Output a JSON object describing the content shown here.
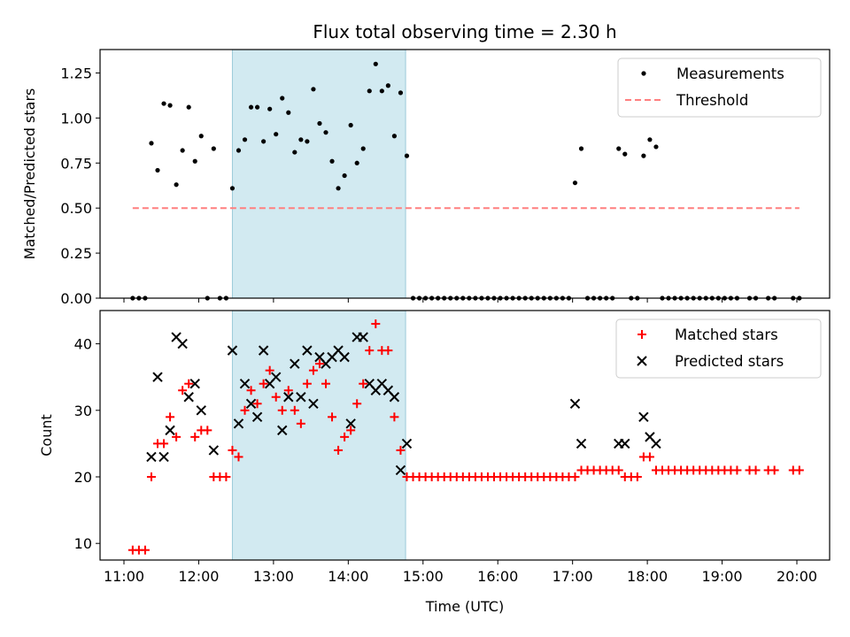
{
  "chart_data": [
    {
      "type": "scatter",
      "title": "Flux total observing time = 2.30 h",
      "xlabel": "",
      "ylabel": "Matched/Predicted stars",
      "ylim": [
        0,
        1.38
      ],
      "yticks": [
        "0.00",
        "0.25",
        "0.50",
        "0.75",
        "1.00",
        "1.25"
      ],
      "ytick_values": [
        0,
        0.25,
        0.5,
        0.75,
        1.0,
        1.25
      ],
      "highlight_span": [
        "12:27",
        "14:46"
      ],
      "highlight_color": "#add8e6",
      "legend_position": "upper right",
      "series": [
        {
          "name": "Measurements",
          "marker": "dot",
          "color": "#000000",
          "points": [
            [
              "11:07",
              0
            ],
            [
              "11:12",
              0
            ],
            [
              "11:17",
              0
            ],
            [
              "11:22",
              0.86
            ],
            [
              "11:27",
              0.71
            ],
            [
              "11:32",
              1.08
            ],
            [
              "11:37",
              1.07
            ],
            [
              "11:42",
              0.63
            ],
            [
              "11:47",
              0.82
            ],
            [
              "11:52",
              1.06
            ],
            [
              "11:57",
              0.76
            ],
            [
              "12:02",
              0.9
            ],
            [
              "12:07",
              0
            ],
            [
              "12:12",
              0.83
            ],
            [
              "12:17",
              0
            ],
            [
              "12:22",
              0
            ],
            [
              "12:27",
              0.61
            ],
            [
              "12:32",
              0.82
            ],
            [
              "12:37",
              0.88
            ],
            [
              "12:42",
              1.06
            ],
            [
              "12:47",
              1.06
            ],
            [
              "12:52",
              0.87
            ],
            [
              "12:57",
              1.05
            ],
            [
              "13:02",
              0.91
            ],
            [
              "13:07",
              1.11
            ],
            [
              "13:12",
              1.03
            ],
            [
              "13:17",
              0.81
            ],
            [
              "13:22",
              0.88
            ],
            [
              "13:27",
              0.87
            ],
            [
              "13:32",
              1.16
            ],
            [
              "13:37",
              0.97
            ],
            [
              "13:42",
              0.92
            ],
            [
              "13:47",
              0.76
            ],
            [
              "13:52",
              0.61
            ],
            [
              "13:57",
              0.68
            ],
            [
              "14:02",
              0.96
            ],
            [
              "14:07",
              0.75
            ],
            [
              "14:12",
              0.83
            ],
            [
              "14:17",
              1.15
            ],
            [
              "14:22",
              1.3
            ],
            [
              "14:27",
              1.15
            ],
            [
              "14:32",
              1.18
            ],
            [
              "14:37",
              0.9
            ],
            [
              "14:42",
              1.14
            ],
            [
              "14:47",
              0.79
            ],
            [
              "14:52",
              0
            ],
            [
              "14:57",
              0
            ],
            [
              "15:02",
              0
            ],
            [
              "15:07",
              0
            ],
            [
              "15:12",
              0
            ],
            [
              "15:17",
              0
            ],
            [
              "15:22",
              0
            ],
            [
              "15:27",
              0
            ],
            [
              "15:32",
              0
            ],
            [
              "15:37",
              0
            ],
            [
              "15:42",
              0
            ],
            [
              "15:47",
              0
            ],
            [
              "15:52",
              0
            ],
            [
              "15:57",
              0
            ],
            [
              "16:02",
              0
            ],
            [
              "16:07",
              0
            ],
            [
              "16:12",
              0
            ],
            [
              "16:17",
              0
            ],
            [
              "16:22",
              0
            ],
            [
              "16:27",
              0
            ],
            [
              "16:32",
              0
            ],
            [
              "16:37",
              0
            ],
            [
              "16:42",
              0
            ],
            [
              "16:47",
              0
            ],
            [
              "16:52",
              0
            ],
            [
              "16:57",
              0
            ],
            [
              "17:02",
              0.64
            ],
            [
              "17:07",
              0.83
            ],
            [
              "17:12",
              0
            ],
            [
              "17:17",
              0
            ],
            [
              "17:22",
              0
            ],
            [
              "17:27",
              0
            ],
            [
              "17:32",
              0
            ],
            [
              "17:37",
              0.83
            ],
            [
              "17:42",
              0.8
            ],
            [
              "17:47",
              0
            ],
            [
              "17:52",
              0
            ],
            [
              "17:57",
              0.79
            ],
            [
              "18:02",
              0.88
            ],
            [
              "18:07",
              0.84
            ],
            [
              "18:12",
              0
            ],
            [
              "18:17",
              0
            ],
            [
              "18:22",
              0
            ],
            [
              "18:27",
              0
            ],
            [
              "18:32",
              0
            ],
            [
              "18:37",
              0
            ],
            [
              "18:42",
              0
            ],
            [
              "18:47",
              0
            ],
            [
              "18:52",
              0
            ],
            [
              "18:57",
              0
            ],
            [
              "19:02",
              0
            ],
            [
              "19:07",
              0
            ],
            [
              "19:12",
              0
            ],
            [
              "19:22",
              0
            ],
            [
              "19:27",
              0
            ],
            [
              "19:37",
              0
            ],
            [
              "19:42",
              0
            ],
            [
              "19:57",
              0
            ],
            [
              "20:02",
              0
            ]
          ]
        },
        {
          "name": "Threshold",
          "marker": "dashed-line",
          "color": "#ff7f7f",
          "points": [
            [
              "11:07",
              0.5
            ],
            [
              "20:02",
              0.5
            ]
          ]
        }
      ]
    },
    {
      "type": "scatter",
      "title": "",
      "xlabel": "Time (UTC)",
      "ylabel": "Count",
      "ylim": [
        7.5,
        45
      ],
      "yticks": [
        "10",
        "20",
        "30",
        "40"
      ],
      "ytick_values": [
        10,
        20,
        30,
        40
      ],
      "xticks": [
        "11:00",
        "12:00",
        "13:00",
        "14:00",
        "15:00",
        "16:00",
        "17:00",
        "18:00",
        "19:00",
        "20:00"
      ],
      "highlight_span": [
        "12:27",
        "14:46"
      ],
      "highlight_color": "#add8e6",
      "legend_position": "upper right",
      "series": [
        {
          "name": "Matched stars",
          "marker": "plus",
          "color": "#ff0000",
          "points": [
            [
              "11:07",
              9
            ],
            [
              "11:12",
              9
            ],
            [
              "11:17",
              9
            ],
            [
              "11:22",
              20
            ],
            [
              "11:27",
              25
            ],
            [
              "11:32",
              25
            ],
            [
              "11:37",
              29
            ],
            [
              "11:42",
              26
            ],
            [
              "11:47",
              33
            ],
            [
              "11:52",
              34
            ],
            [
              "11:57",
              26
            ],
            [
              "12:02",
              27
            ],
            [
              "12:07",
              27
            ],
            [
              "12:12",
              20
            ],
            [
              "12:17",
              20
            ],
            [
              "12:22",
              20
            ],
            [
              "12:27",
              24
            ],
            [
              "12:32",
              23
            ],
            [
              "12:37",
              30
            ],
            [
              "12:42",
              33
            ],
            [
              "12:47",
              31
            ],
            [
              "12:52",
              34
            ],
            [
              "12:57",
              36
            ],
            [
              "13:02",
              32
            ],
            [
              "13:07",
              30
            ],
            [
              "13:12",
              33
            ],
            [
              "13:17",
              30
            ],
            [
              "13:22",
              28
            ],
            [
              "13:27",
              34
            ],
            [
              "13:32",
              36
            ],
            [
              "13:37",
              37
            ],
            [
              "13:42",
              34
            ],
            [
              "13:47",
              29
            ],
            [
              "13:52",
              24
            ],
            [
              "13:57",
              26
            ],
            [
              "14:02",
              27
            ],
            [
              "14:07",
              31
            ],
            [
              "14:12",
              34
            ],
            [
              "14:17",
              39
            ],
            [
              "14:22",
              43
            ],
            [
              "14:27",
              39
            ],
            [
              "14:32",
              39
            ],
            [
              "14:37",
              29
            ],
            [
              "14:42",
              24
            ],
            [
              "14:47",
              20
            ],
            [
              "14:52",
              20
            ],
            [
              "14:57",
              20
            ],
            [
              "15:02",
              20
            ],
            [
              "15:07",
              20
            ],
            [
              "15:12",
              20
            ],
            [
              "15:17",
              20
            ],
            [
              "15:22",
              20
            ],
            [
              "15:27",
              20
            ],
            [
              "15:32",
              20
            ],
            [
              "15:37",
              20
            ],
            [
              "15:42",
              20
            ],
            [
              "15:47",
              20
            ],
            [
              "15:52",
              20
            ],
            [
              "15:57",
              20
            ],
            [
              "16:02",
              20
            ],
            [
              "16:07",
              20
            ],
            [
              "16:12",
              20
            ],
            [
              "16:17",
              20
            ],
            [
              "16:22",
              20
            ],
            [
              "16:27",
              20
            ],
            [
              "16:32",
              20
            ],
            [
              "16:37",
              20
            ],
            [
              "16:42",
              20
            ],
            [
              "16:47",
              20
            ],
            [
              "16:52",
              20
            ],
            [
              "16:57",
              20
            ],
            [
              "17:02",
              20
            ],
            [
              "17:07",
              21
            ],
            [
              "17:12",
              21
            ],
            [
              "17:17",
              21
            ],
            [
              "17:22",
              21
            ],
            [
              "17:27",
              21
            ],
            [
              "17:32",
              21
            ],
            [
              "17:37",
              21
            ],
            [
              "17:42",
              20
            ],
            [
              "17:47",
              20
            ],
            [
              "17:52",
              20
            ],
            [
              "17:57",
              23
            ],
            [
              "18:02",
              23
            ],
            [
              "18:07",
              21
            ],
            [
              "18:12",
              21
            ],
            [
              "18:17",
              21
            ],
            [
              "18:22",
              21
            ],
            [
              "18:27",
              21
            ],
            [
              "18:32",
              21
            ],
            [
              "18:37",
              21
            ],
            [
              "18:42",
              21
            ],
            [
              "18:47",
              21
            ],
            [
              "18:52",
              21
            ],
            [
              "18:57",
              21
            ],
            [
              "19:02",
              21
            ],
            [
              "19:07",
              21
            ],
            [
              "19:12",
              21
            ],
            [
              "19:22",
              21
            ],
            [
              "19:27",
              21
            ],
            [
              "19:37",
              21
            ],
            [
              "19:42",
              21
            ],
            [
              "19:57",
              21
            ],
            [
              "20:02",
              21
            ]
          ]
        },
        {
          "name": "Predicted stars",
          "marker": "x",
          "color": "#000000",
          "points": [
            [
              "11:22",
              23
            ],
            [
              "11:27",
              35
            ],
            [
              "11:32",
              23
            ],
            [
              "11:37",
              27
            ],
            [
              "11:42",
              41
            ],
            [
              "11:47",
              40
            ],
            [
              "11:52",
              32
            ],
            [
              "11:57",
              34
            ],
            [
              "12:02",
              30
            ],
            [
              "12:12",
              24
            ],
            [
              "12:27",
              39
            ],
            [
              "12:32",
              28
            ],
            [
              "12:37",
              34
            ],
            [
              "12:42",
              31
            ],
            [
              "12:47",
              29
            ],
            [
              "12:52",
              39
            ],
            [
              "12:57",
              34
            ],
            [
              "13:02",
              35
            ],
            [
              "13:07",
              27
            ],
            [
              "13:12",
              32
            ],
            [
              "13:17",
              37
            ],
            [
              "13:22",
              32
            ],
            [
              "13:27",
              39
            ],
            [
              "13:32",
              31
            ],
            [
              "13:37",
              38
            ],
            [
              "13:42",
              37
            ],
            [
              "13:47",
              38
            ],
            [
              "13:52",
              39
            ],
            [
              "13:57",
              38
            ],
            [
              "14:02",
              28
            ],
            [
              "14:07",
              41
            ],
            [
              "14:12",
              41
            ],
            [
              "14:17",
              34
            ],
            [
              "14:22",
              33
            ],
            [
              "14:27",
              34
            ],
            [
              "14:32",
              33
            ],
            [
              "14:37",
              32
            ],
            [
              "14:42",
              21
            ],
            [
              "14:47",
              25
            ],
            [
              "17:02",
              31
            ],
            [
              "17:07",
              25
            ],
            [
              "17:37",
              25
            ],
            [
              "17:42",
              25
            ],
            [
              "17:57",
              29
            ],
            [
              "18:02",
              26
            ],
            [
              "18:07",
              25
            ]
          ]
        }
      ]
    }
  ]
}
